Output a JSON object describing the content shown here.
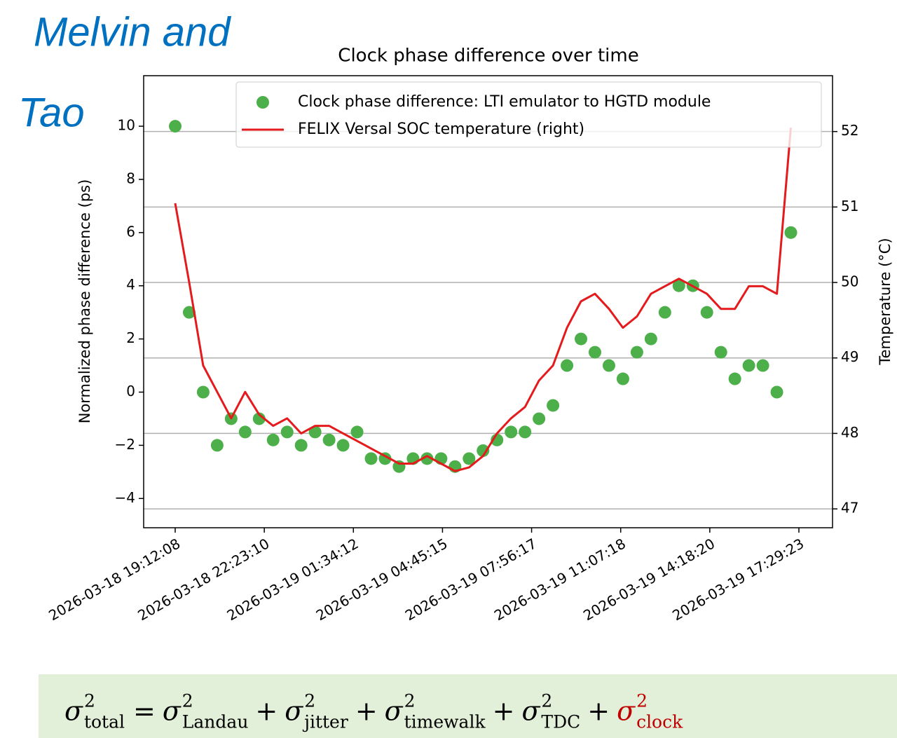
{
  "heading": {
    "lines": [
      "Melvin and",
      "Tao"
    ]
  },
  "chart_data": {
    "type": "scatter+line",
    "title": "Clock phase difference over time",
    "ylabel": "Normalized phase difference (ps)",
    "y2label": "Temperature (°C)",
    "legend": "upper right",
    "grid": true,
    "x": [
      "2026-03-18 19:12:08",
      "2026-03-18 19:42:08",
      "2026-03-18 20:12:08",
      "2026-03-18 20:42:08",
      "2026-03-18 21:12:08",
      "2026-03-18 21:42:08",
      "2026-03-18 22:12:08",
      "2026-03-18 22:42:08",
      "2026-03-18 23:12:08",
      "2026-03-18 23:42:08",
      "2026-03-19 00:12:08",
      "2026-03-19 00:42:08",
      "2026-03-19 01:12:08",
      "2026-03-19 01:42:08",
      "2026-03-19 02:12:08",
      "2026-03-19 02:42:08",
      "2026-03-19 03:12:08",
      "2026-03-19 03:42:08",
      "2026-03-19 04:12:08",
      "2026-03-19 04:42:08",
      "2026-03-19 05:12:08",
      "2026-03-19 05:42:08",
      "2026-03-19 06:12:08",
      "2026-03-19 06:42:08",
      "2026-03-19 07:12:08",
      "2026-03-19 07:42:08",
      "2026-03-19 08:12:08",
      "2026-03-19 08:42:08",
      "2026-03-19 09:12:08",
      "2026-03-19 09:42:08",
      "2026-03-19 10:12:08",
      "2026-03-19 10:42:08",
      "2026-03-19 11:12:08",
      "2026-03-19 11:42:08",
      "2026-03-19 12:12:08",
      "2026-03-19 12:42:08",
      "2026-03-19 13:12:08",
      "2026-03-19 13:42:08",
      "2026-03-19 14:12:08",
      "2026-03-19 14:42:08",
      "2026-03-19 15:12:08",
      "2026-03-19 15:42:08",
      "2026-03-19 16:12:08",
      "2026-03-19 16:42:08",
      "2026-03-19 17:12:08"
    ],
    "series": [
      {
        "name": "Clock phase difference: LTI emulator to HGTD module",
        "color": "#4daf4a",
        "style": "scatter",
        "values": [
          10,
          3,
          0,
          -2,
          -1,
          -1.5,
          -1,
          -1.8,
          -1.5,
          -2,
          -1.5,
          -1.8,
          -2,
          -1.5,
          -2.5,
          -2.5,
          -2.8,
          -2.5,
          -2.5,
          -2.5,
          -2.8,
          -2.5,
          -2.2,
          -1.8,
          -1.5,
          -1.5,
          -1,
          -0.5,
          1,
          2,
          1.5,
          1,
          0.5,
          1.5,
          2,
          3,
          4,
          4,
          3,
          1.5,
          0.5,
          1,
          1,
          0,
          6
        ]
      },
      {
        "name": "FELIX Versal SOC temperature (right)",
        "color": "#e41a1c",
        "style": "line",
        "axis": "y2",
        "values": [
          51.05,
          50.0,
          48.9,
          48.55,
          48.2,
          48.55,
          48.25,
          48.1,
          48.2,
          48.0,
          48.1,
          48.1,
          48.0,
          47.9,
          47.8,
          47.7,
          47.6,
          47.6,
          47.7,
          47.6,
          47.5,
          47.55,
          47.7,
          48.0,
          48.2,
          48.35,
          48.7,
          48.9,
          49.4,
          49.75,
          49.85,
          49.65,
          49.4,
          49.55,
          49.85,
          49.95,
          50.05,
          49.95,
          49.85,
          49.65,
          49.65,
          49.95,
          49.95,
          49.85,
          52.05
        ]
      }
    ],
    "xlim": [
      "2026-03-18 18:04:31",
      "2026-03-19 18:41:30"
    ],
    "xticks": [
      "2026-03-18 19:12:08",
      "2026-03-18 22:23:10",
      "2026-03-19 01:34:12",
      "2026-03-19 04:45:15",
      "2026-03-19 07:56:17",
      "2026-03-19 11:07:18",
      "2026-03-19 14:18:20",
      "2026-03-19 17:29:23"
    ],
    "ylim": [
      -5.1,
      11.9
    ],
    "yticks": [
      {
        "value": -4,
        "label": "−4"
      },
      {
        "value": -2,
        "label": "−2"
      },
      0,
      2,
      4,
      6,
      8,
      10
    ],
    "y2lim": [
      46.75,
      52.74
    ],
    "y2ticks": [
      47,
      48,
      49,
      50,
      51,
      52
    ]
  },
  "formula": {
    "operators": [
      "=",
      "+",
      "+",
      "+",
      "+"
    ],
    "terms": [
      {
        "base": "σ",
        "sup": "2",
        "sub": "total",
        "color": "#000000"
      },
      {
        "base": "σ",
        "sup": "2",
        "sub": "Landau",
        "color": "#000000"
      },
      {
        "base": "σ",
        "sup": "2",
        "sub": "jitter",
        "color": "#000000"
      },
      {
        "base": "σ",
        "sup": "2",
        "sub": "timewalk",
        "color": "#000000"
      },
      {
        "base": "σ",
        "sup": "2",
        "sub": "TDC",
        "color": "#000000"
      },
      {
        "base": "σ",
        "sup": "2",
        "sub": "clock",
        "color": "#c00000"
      }
    ]
  }
}
